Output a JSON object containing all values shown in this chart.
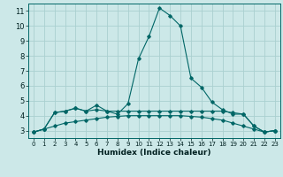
{
  "title": "",
  "xlabel": "Humidex (Indice chaleur)",
  "ylabel": "",
  "background_color": "#cce8e8",
  "grid_color": "#aad0d0",
  "line_color": "#006666",
  "xlim": [
    -0.5,
    23.5
  ],
  "ylim": [
    2.5,
    11.5
  ],
  "xticks": [
    0,
    1,
    2,
    3,
    4,
    5,
    6,
    7,
    8,
    9,
    10,
    11,
    12,
    13,
    14,
    15,
    16,
    17,
    18,
    19,
    20,
    21,
    22,
    23
  ],
  "yticks": [
    3,
    4,
    5,
    6,
    7,
    8,
    9,
    10,
    11
  ],
  "series": [
    [
      2.9,
      3.1,
      4.2,
      4.3,
      4.5,
      4.3,
      4.7,
      4.3,
      4.1,
      4.8,
      7.8,
      9.3,
      11.2,
      10.7,
      10.0,
      6.5,
      5.9,
      4.9,
      4.4,
      4.1,
      4.1,
      3.3,
      2.9,
      3.0
    ],
    [
      2.9,
      3.1,
      4.2,
      4.3,
      4.5,
      4.3,
      4.4,
      4.3,
      4.3,
      4.3,
      4.3,
      4.3,
      4.3,
      4.3,
      4.3,
      4.3,
      4.3,
      4.3,
      4.3,
      4.2,
      4.1,
      3.3,
      2.9,
      3.0
    ],
    [
      2.9,
      3.1,
      3.3,
      3.5,
      3.6,
      3.7,
      3.8,
      3.9,
      3.95,
      4.0,
      4.0,
      4.0,
      4.0,
      4.0,
      4.0,
      3.95,
      3.9,
      3.8,
      3.7,
      3.5,
      3.3,
      3.1,
      2.9,
      3.0
    ]
  ]
}
